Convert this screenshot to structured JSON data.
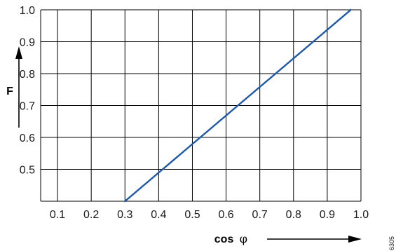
{
  "chart_data": {
    "type": "line",
    "xlabel": "cos φ",
    "ylabel": "F",
    "xlim": [
      0.05,
      1.0
    ],
    "ylim": [
      0.4,
      1.0
    ],
    "x_ticks": [
      "0.1",
      "0.2",
      "0.3",
      "0.4",
      "0.5",
      "0.6",
      "0.7",
      "0.8",
      "0.9",
      "1.0"
    ],
    "y_ticks": [
      "0.5",
      "0.6",
      "0.7",
      "0.8",
      "0.9",
      "1.0"
    ],
    "grid": true,
    "series": [
      {
        "x": [
          0.3,
          0.97
        ],
        "y": [
          0.4,
          1.0
        ]
      }
    ],
    "figure_id": "6305",
    "colors": {
      "line": "#1f5aa6",
      "grid": "#000000",
      "text": "#1a1a1a"
    }
  }
}
